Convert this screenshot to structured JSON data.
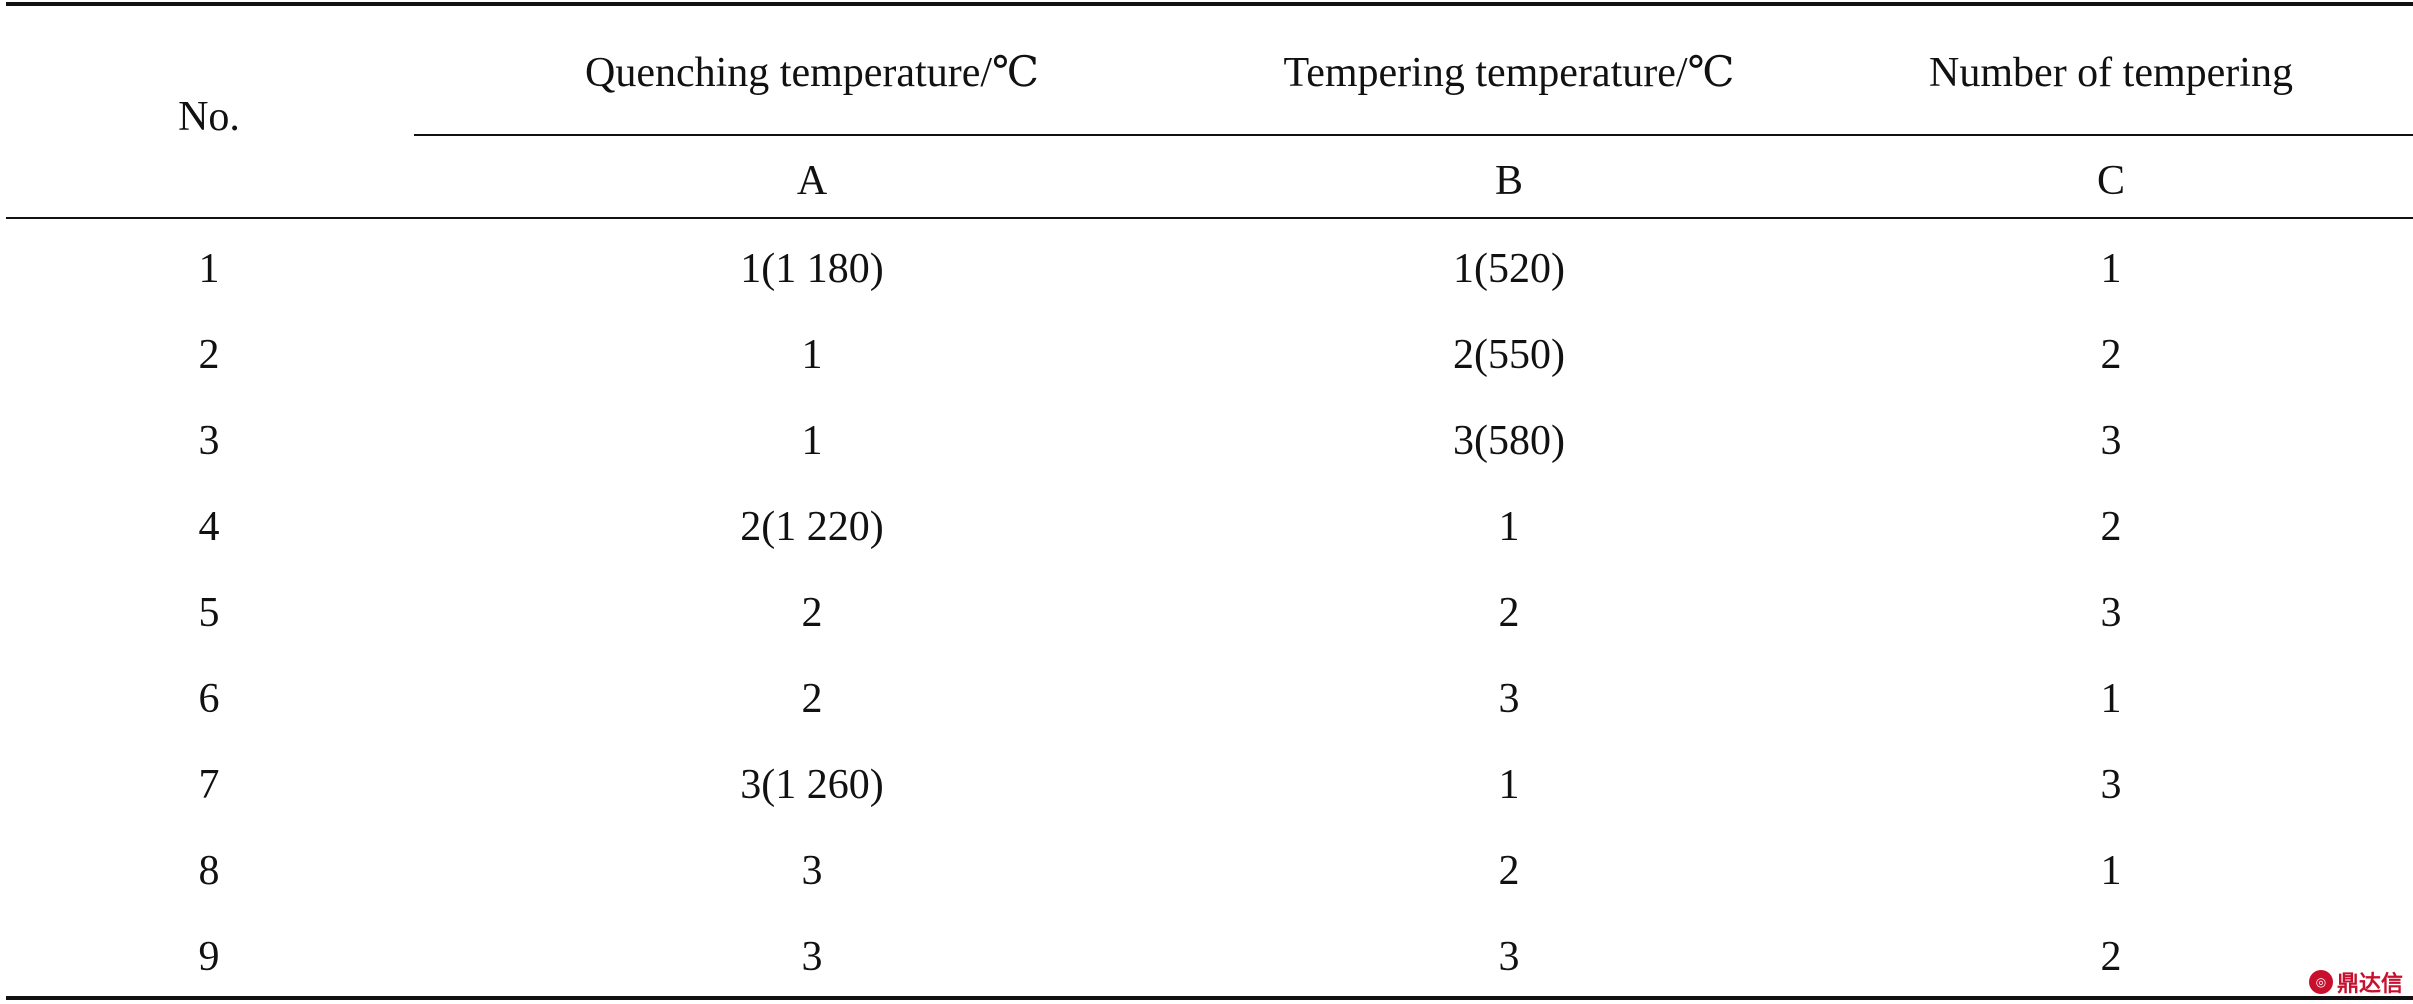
{
  "header": {
    "no": "No.",
    "factors": [
      {
        "name": "Quenching temperature/℃",
        "code": "A"
      },
      {
        "name": "Tempering temperature/℃",
        "code": "B"
      },
      {
        "name": "Number of tempering",
        "code": "C"
      }
    ]
  },
  "rows": [
    {
      "no": "1",
      "a": "1(1 180)",
      "b": "1(520)",
      "c": "1"
    },
    {
      "no": "2",
      "a": "1",
      "b": "2(550)",
      "c": "2"
    },
    {
      "no": "3",
      "a": "1",
      "b": "3(580)",
      "c": "3"
    },
    {
      "no": "4",
      "a": "2(1 220)",
      "b": "1",
      "c": "2"
    },
    {
      "no": "5",
      "a": "2",
      "b": "2",
      "c": "3"
    },
    {
      "no": "6",
      "a": "2",
      "b": "3",
      "c": "1"
    },
    {
      "no": "7",
      "a": "3(1 260)",
      "b": "1",
      "c": "3"
    },
    {
      "no": "8",
      "a": "3",
      "b": "2",
      "c": "1"
    },
    {
      "no": "9",
      "a": "3",
      "b": "3",
      "c": "2"
    }
  ],
  "watermark": {
    "text": "鼎达信",
    "color": "#c8102e"
  }
}
